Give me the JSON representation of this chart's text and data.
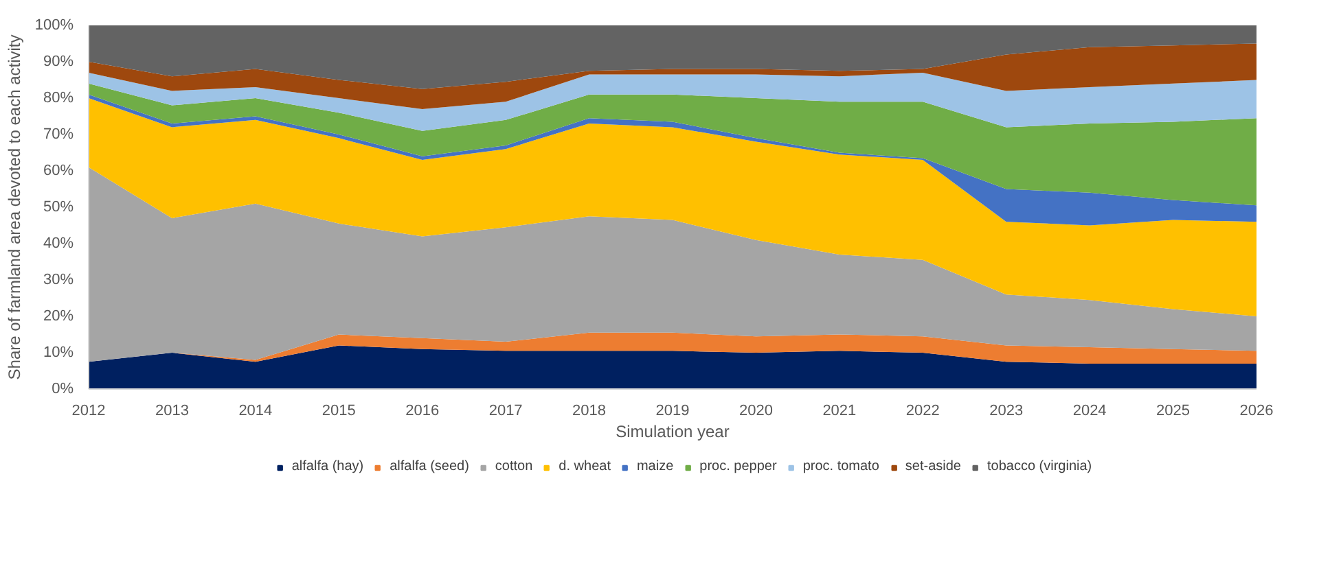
{
  "chart_data": {
    "type": "area",
    "stacked": true,
    "xlabel": "Simulation year",
    "ylabel": "Share of farmland area devoted to each activity",
    "x": [
      2012,
      2013,
      2014,
      2015,
      2016,
      2017,
      2018,
      2019,
      2020,
      2021,
      2022,
      2023,
      2024,
      2025,
      2026
    ],
    "xlim": [
      2012,
      2026
    ],
    "xticks": [
      2012,
      2013,
      2014,
      2015,
      2016,
      2017,
      2018,
      2019,
      2020,
      2021,
      2022,
      2023,
      2024,
      2025,
      2026
    ],
    "ylim": [
      0,
      100
    ],
    "yticks": [
      {
        "value": 0,
        "label": "0%"
      },
      {
        "value": 10,
        "label": "10%"
      },
      {
        "value": 20,
        "label": "20%"
      },
      {
        "value": 30,
        "label": "30%"
      },
      {
        "value": 40,
        "label": "40%"
      },
      {
        "value": 50,
        "label": "50%"
      },
      {
        "value": 60,
        "label": "60%"
      },
      {
        "value": 70,
        "label": "70%"
      },
      {
        "value": 80,
        "label": "80%"
      },
      {
        "value": 90,
        "label": "90%"
      },
      {
        "value": 100,
        "label": "100%"
      }
    ],
    "grid": false,
    "legend": "bottom",
    "series": [
      {
        "name": "alfalfa (hay)",
        "color": "#002060",
        "values": [
          7.5,
          10,
          7.5,
          12,
          11,
          10.5,
          10.5,
          10.5,
          10,
          10.5,
          10,
          7.5,
          7,
          7,
          7
        ]
      },
      {
        "name": "alfalfa (seed)",
        "color": "#ed7d31",
        "values": [
          0,
          0,
          0.5,
          3,
          3,
          2.5,
          5,
          5,
          4.5,
          4.5,
          4.5,
          4.5,
          4.5,
          4,
          3.5
        ]
      },
      {
        "name": "cotton",
        "color": "#a5a5a5",
        "values": [
          53.5,
          37,
          43,
          30.5,
          28,
          31.5,
          32,
          31,
          26.5,
          22,
          21,
          14,
          13,
          11,
          9.5
        ]
      },
      {
        "name": "d. wheat",
        "color": "#ffc000",
        "values": [
          19,
          25,
          23,
          23.5,
          21,
          21.5,
          25.5,
          25.5,
          27,
          27.5,
          27.5,
          20,
          20.5,
          24.5,
          26
        ]
      },
      {
        "name": "maize",
        "color": "#4472c4",
        "values": [
          1,
          1,
          1,
          1,
          1,
          1,
          1.5,
          1.5,
          1,
          0.5,
          0.5,
          9,
          9,
          5.5,
          4.5
        ]
      },
      {
        "name": "proc. pepper",
        "color": "#70ad47",
        "values": [
          3,
          5,
          5,
          6,
          7,
          7,
          6.5,
          7.5,
          11,
          14,
          15.5,
          17,
          19,
          21.5,
          24
        ]
      },
      {
        "name": "proc. tomato",
        "color": "#9dc3e6",
        "values": [
          3,
          4,
          3,
          4,
          6,
          5,
          5.5,
          5.5,
          6.5,
          7,
          8,
          10,
          10,
          10.5,
          10.5
        ]
      },
      {
        "name": "set-aside",
        "color": "#9e480e",
        "values": [
          3,
          4,
          5,
          5,
          5.5,
          5.5,
          1,
          1.5,
          1.5,
          1.5,
          1,
          10,
          11,
          10.5,
          10
        ]
      },
      {
        "name": "tobacco (virginia)",
        "color": "#636363",
        "values": [
          10,
          14,
          12,
          15,
          17.5,
          15.5,
          12.5,
          12,
          12,
          12.5,
          12,
          8,
          6,
          5.5,
          5
        ]
      }
    ]
  }
}
